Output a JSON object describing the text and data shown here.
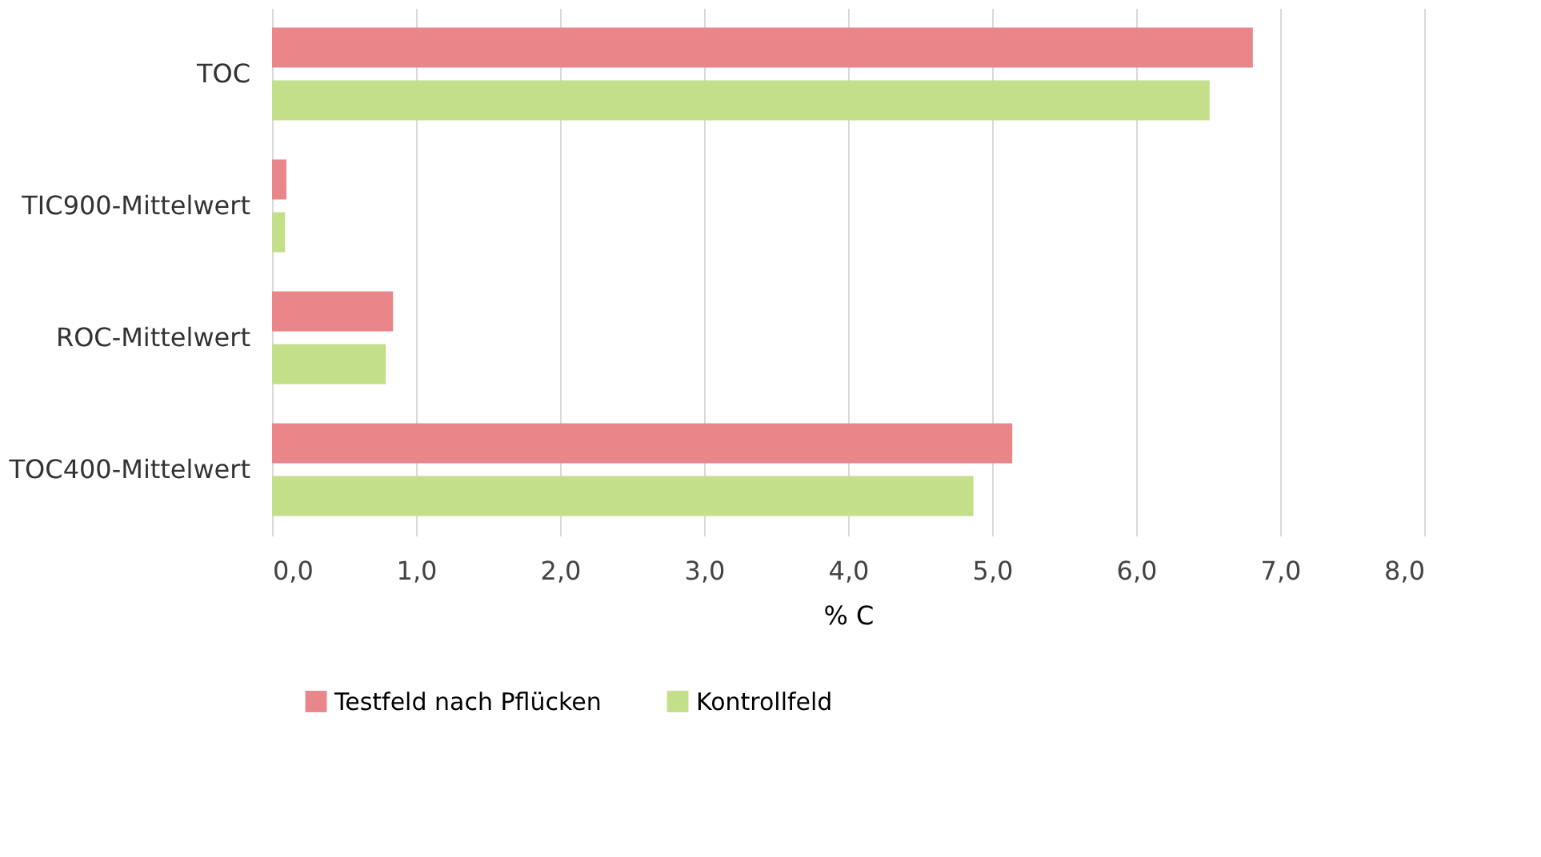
{
  "chart_data": {
    "type": "bar",
    "orientation": "horizontal",
    "xlabel": "% C",
    "categories": [
      "TOC",
      "TIC900-Mittelwert",
      "ROC-Mittelwert",
      "TOC400-Mittelwert"
    ],
    "series": [
      {
        "name": "Testfeld nach Pflücken",
        "color": "#e8868a",
        "values": [
          6.81,
          0.1,
          0.84,
          5.14
        ]
      },
      {
        "name": "Kontrollfeld",
        "color": "#c4df8a",
        "values": [
          6.51,
          0.09,
          0.79,
          4.87
        ]
      }
    ],
    "xlim": [
      0,
      8
    ],
    "xticks": [
      {
        "value": 0,
        "label": "0,0"
      },
      {
        "value": 1,
        "label": "1,0"
      },
      {
        "value": 2,
        "label": "2,0"
      },
      {
        "value": 3,
        "label": "3,0"
      },
      {
        "value": 4,
        "label": "4,0"
      },
      {
        "value": 5,
        "label": "5,0"
      },
      {
        "value": 6,
        "label": "6,0"
      },
      {
        "value": 7,
        "label": "7,0"
      },
      {
        "value": 8,
        "label": "8,0"
      }
    ],
    "grid": "x",
    "legend": "bottom"
  }
}
